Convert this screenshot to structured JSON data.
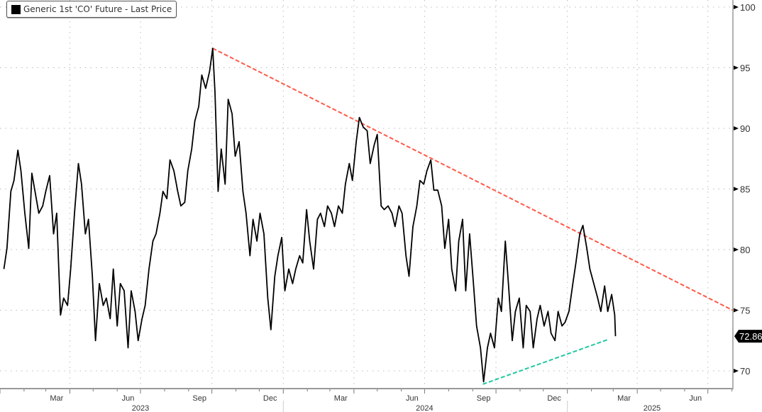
{
  "chart_data": {
    "type": "line",
    "title": "",
    "legend": {
      "entries": [
        "Generic 1st 'CO' Future - Last Price"
      ],
      "placement": "top-left"
    },
    "ylim": [
      69,
      100.5
    ],
    "yticks": [
      70,
      75,
      80,
      85,
      90,
      95,
      100
    ],
    "y_axis_side": "right",
    "xlim": [
      "2023-01-01",
      "2025-08-25"
    ],
    "month_labels": [
      {
        "label": "Mar",
        "date": "2023-03-15"
      },
      {
        "label": "Jun",
        "date": "2023-06-15"
      },
      {
        "label": "Sep",
        "date": "2023-09-15"
      },
      {
        "label": "Dec",
        "date": "2023-12-15"
      },
      {
        "label": "Mar",
        "date": "2024-03-15"
      },
      {
        "label": "Jun",
        "date": "2024-06-15"
      },
      {
        "label": "Sep",
        "date": "2024-09-15"
      },
      {
        "label": "Dec",
        "date": "2024-12-15"
      },
      {
        "label": "Mar",
        "date": "2025-03-15"
      },
      {
        "label": "Jun",
        "date": "2025-06-15"
      }
    ],
    "year_labels": [
      {
        "label": "2023",
        "date": "2023-07-01"
      },
      {
        "label": "2024",
        "date": "2024-07-01"
      },
      {
        "label": "2025",
        "date": "2025-04-20"
      }
    ],
    "grid": true,
    "last_value_label": "72.86",
    "colors": {
      "series": "#000000",
      "resistance": "#ff5a4a",
      "support": "#20c9a0",
      "grid": "#bbbbbb"
    },
    "series": [
      {
        "name": "Generic 1st 'CO' Future - Last Price",
        "points": [
          [
            "2023-01-06",
            78.4
          ],
          [
            "2023-01-10",
            80.1
          ],
          [
            "2023-01-15",
            84.8
          ],
          [
            "2023-01-19",
            85.7
          ],
          [
            "2023-01-24",
            88.2
          ],
          [
            "2023-01-28",
            86.5
          ],
          [
            "2023-02-02",
            83.0
          ],
          [
            "2023-02-07",
            80.1
          ],
          [
            "2023-02-11",
            86.3
          ],
          [
            "2023-02-20",
            83.0
          ],
          [
            "2023-02-25",
            83.6
          ],
          [
            "2023-03-01",
            84.8
          ],
          [
            "2023-03-06",
            86.1
          ],
          [
            "2023-03-11",
            81.3
          ],
          [
            "2023-03-15",
            83.0
          ],
          [
            "2023-03-20",
            74.6
          ],
          [
            "2023-03-24",
            76.0
          ],
          [
            "2023-03-29",
            75.4
          ],
          [
            "2023-04-02",
            78.4
          ],
          [
            "2023-04-07",
            83.0
          ],
          [
            "2023-04-12",
            87.1
          ],
          [
            "2023-04-16",
            85.4
          ],
          [
            "2023-04-21",
            81.3
          ],
          [
            "2023-04-25",
            82.5
          ],
          [
            "2023-04-30",
            77.8
          ],
          [
            "2023-05-04",
            72.5
          ],
          [
            "2023-05-09",
            77.2
          ],
          [
            "2023-05-14",
            75.4
          ],
          [
            "2023-05-18",
            76.0
          ],
          [
            "2023-05-23",
            74.3
          ],
          [
            "2023-05-27",
            78.4
          ],
          [
            "2023-06-01",
            73.7
          ],
          [
            "2023-06-05",
            77.2
          ],
          [
            "2023-06-10",
            76.6
          ],
          [
            "2023-06-15",
            71.9
          ],
          [
            "2023-06-19",
            76.6
          ],
          [
            "2023-06-24",
            74.9
          ],
          [
            "2023-06-28",
            72.5
          ],
          [
            "2023-07-03",
            74.3
          ],
          [
            "2023-07-07",
            75.4
          ],
          [
            "2023-07-12",
            78.4
          ],
          [
            "2023-07-17",
            80.7
          ],
          [
            "2023-07-21",
            81.3
          ],
          [
            "2023-07-26",
            83.0
          ],
          [
            "2023-07-30",
            84.8
          ],
          [
            "2023-08-04",
            84.2
          ],
          [
            "2023-08-08",
            87.4
          ],
          [
            "2023-08-13",
            86.5
          ],
          [
            "2023-08-18",
            84.8
          ],
          [
            "2023-08-22",
            83.6
          ],
          [
            "2023-08-27",
            83.9
          ],
          [
            "2023-08-31",
            86.5
          ],
          [
            "2023-09-05",
            88.3
          ],
          [
            "2023-09-09",
            90.6
          ],
          [
            "2023-09-14",
            91.8
          ],
          [
            "2023-09-18",
            94.4
          ],
          [
            "2023-09-23",
            93.3
          ],
          [
            "2023-09-28",
            94.7
          ],
          [
            "2023-10-02",
            96.6
          ],
          [
            "2023-10-05",
            93.0
          ],
          [
            "2023-10-09",
            84.8
          ],
          [
            "2023-10-13",
            88.3
          ],
          [
            "2023-10-18",
            85.4
          ],
          [
            "2023-10-22",
            92.4
          ],
          [
            "2023-10-27",
            91.2
          ],
          [
            "2023-10-31",
            87.7
          ],
          [
            "2023-11-05",
            88.9
          ],
          [
            "2023-11-10",
            84.8
          ],
          [
            "2023-11-14",
            83.0
          ],
          [
            "2023-11-19",
            79.5
          ],
          [
            "2023-11-23",
            82.5
          ],
          [
            "2023-11-28",
            80.7
          ],
          [
            "2023-12-02",
            83.0
          ],
          [
            "2023-12-07",
            81.3
          ],
          [
            "2023-12-12",
            76.0
          ],
          [
            "2023-12-16",
            73.4
          ],
          [
            "2023-12-21",
            77.8
          ],
          [
            "2023-12-25",
            79.5
          ],
          [
            "2023-12-30",
            81.0
          ],
          [
            "2024-01-03",
            76.6
          ],
          [
            "2024-01-08",
            78.4
          ],
          [
            "2024-01-13",
            77.2
          ],
          [
            "2024-01-17",
            78.4
          ],
          [
            "2024-01-22",
            79.5
          ],
          [
            "2024-01-26",
            78.9
          ],
          [
            "2024-01-31",
            83.3
          ],
          [
            "2024-02-04",
            80.7
          ],
          [
            "2024-02-09",
            78.4
          ],
          [
            "2024-02-14",
            82.5
          ],
          [
            "2024-02-18",
            83.0
          ],
          [
            "2024-02-23",
            81.9
          ],
          [
            "2024-02-27",
            83.6
          ],
          [
            "2024-03-03",
            83.0
          ],
          [
            "2024-03-07",
            81.9
          ],
          [
            "2024-03-12",
            83.6
          ],
          [
            "2024-03-17",
            83.0
          ],
          [
            "2024-03-21",
            85.4
          ],
          [
            "2024-03-26",
            87.1
          ],
          [
            "2024-03-30",
            85.7
          ],
          [
            "2024-04-04",
            88.9
          ],
          [
            "2024-04-08",
            90.9
          ],
          [
            "2024-04-13",
            90.1
          ],
          [
            "2024-04-18",
            89.8
          ],
          [
            "2024-04-22",
            87.1
          ],
          [
            "2024-04-27",
            88.6
          ],
          [
            "2024-05-01",
            89.5
          ],
          [
            "2024-05-06",
            83.6
          ],
          [
            "2024-05-10",
            83.3
          ],
          [
            "2024-05-15",
            83.6
          ],
          [
            "2024-05-20",
            83.0
          ],
          [
            "2024-05-24",
            81.9
          ],
          [
            "2024-05-29",
            83.6
          ],
          [
            "2024-06-02",
            83.0
          ],
          [
            "2024-06-07",
            79.5
          ],
          [
            "2024-06-11",
            77.8
          ],
          [
            "2024-06-16",
            81.9
          ],
          [
            "2024-06-21",
            83.6
          ],
          [
            "2024-06-25",
            85.7
          ],
          [
            "2024-06-30",
            85.4
          ],
          [
            "2024-07-04",
            86.5
          ],
          [
            "2024-07-09",
            87.4
          ],
          [
            "2024-07-13",
            84.9
          ],
          [
            "2024-07-18",
            84.9
          ],
          [
            "2024-07-23",
            83.6
          ],
          [
            "2024-07-27",
            80.1
          ],
          [
            "2024-08-01",
            82.5
          ],
          [
            "2024-08-05",
            78.4
          ],
          [
            "2024-08-10",
            76.6
          ],
          [
            "2024-08-14",
            80.7
          ],
          [
            "2024-08-19",
            82.5
          ],
          [
            "2024-08-23",
            76.6
          ],
          [
            "2024-08-28",
            81.3
          ],
          [
            "2024-09-02",
            77.2
          ],
          [
            "2024-09-06",
            73.7
          ],
          [
            "2024-09-11",
            71.9
          ],
          [
            "2024-09-15",
            69.1
          ],
          [
            "2024-09-20",
            71.9
          ],
          [
            "2024-09-24",
            73.1
          ],
          [
            "2024-09-29",
            71.9
          ],
          [
            "2024-10-04",
            76.0
          ],
          [
            "2024-10-08",
            74.9
          ],
          [
            "2024-10-13",
            80.7
          ],
          [
            "2024-10-17",
            77.2
          ],
          [
            "2024-10-22",
            72.5
          ],
          [
            "2024-10-26",
            74.9
          ],
          [
            "2024-10-31",
            76.0
          ],
          [
            "2024-11-05",
            71.9
          ],
          [
            "2024-11-09",
            75.4
          ],
          [
            "2024-11-14",
            74.9
          ],
          [
            "2024-11-18",
            71.9
          ],
          [
            "2024-11-23",
            74.3
          ],
          [
            "2024-11-27",
            75.4
          ],
          [
            "2024-12-02",
            73.7
          ],
          [
            "2024-12-07",
            74.9
          ],
          [
            "2024-12-11",
            73.1
          ],
          [
            "2024-12-16",
            72.5
          ],
          [
            "2024-12-20",
            74.9
          ],
          [
            "2024-12-25",
            73.7
          ],
          [
            "2024-12-29",
            74.0
          ],
          [
            "2025-01-03",
            74.9
          ],
          [
            "2025-01-08",
            77.2
          ],
          [
            "2025-01-12",
            78.9
          ],
          [
            "2025-01-17",
            81.3
          ],
          [
            "2025-01-21",
            82.0
          ],
          [
            "2025-01-26",
            80.1
          ],
          [
            "2025-01-30",
            78.4
          ],
          [
            "2025-02-04",
            77.2
          ],
          [
            "2025-02-09",
            76.0
          ],
          [
            "2025-02-13",
            74.9
          ],
          [
            "2025-02-18",
            77.0
          ],
          [
            "2025-02-22",
            74.9
          ],
          [
            "2025-02-27",
            76.3
          ],
          [
            "2025-03-03",
            74.6
          ],
          [
            "2025-03-04",
            72.86
          ]
        ]
      }
    ],
    "trendlines": [
      {
        "kind": "resistance",
        "style": "dashed",
        "from": [
          "2023-10-02",
          96.6
        ],
        "to": [
          "2025-08-02",
          75.0
        ]
      },
      {
        "kind": "support",
        "style": "dashed",
        "from": [
          "2024-09-14",
          68.9
        ],
        "to": [
          "2025-02-23",
          72.6
        ]
      }
    ]
  }
}
